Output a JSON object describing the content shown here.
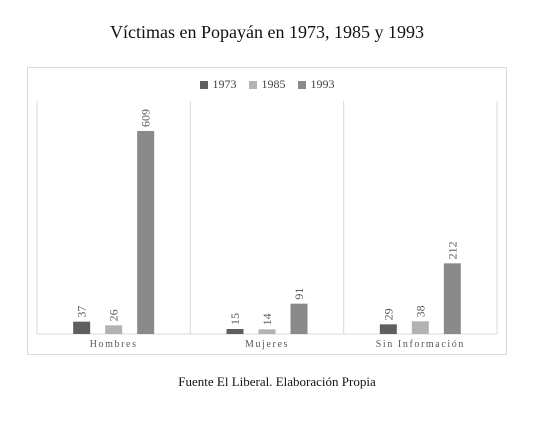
{
  "title": "Víctimas en Popayán en 1973, 1985 y 1993",
  "caption": "Fuente El Liberal. Elaboración Propia",
  "colors": {
    "s1973": "#5f5f5f",
    "s1985": "#b3b3b3",
    "s1993": "#8a8a8a",
    "grid": "#d9d9d9",
    "label": "#595959"
  },
  "chart_data": {
    "type": "bar",
    "title": "Víctimas en Popayán en 1973, 1985 y 1993",
    "categories": [
      "Hombres",
      "Mujeres",
      "Sin Información"
    ],
    "series": [
      {
        "name": "1973",
        "values": [
          37,
          15,
          29
        ]
      },
      {
        "name": "1985",
        "values": [
          26,
          14,
          38
        ]
      },
      {
        "name": "1993",
        "values": [
          609,
          91,
          212
        ]
      }
    ],
    "ylim": [
      0,
      609
    ],
    "grid": false,
    "legend": "top-center",
    "data_labels": true
  }
}
